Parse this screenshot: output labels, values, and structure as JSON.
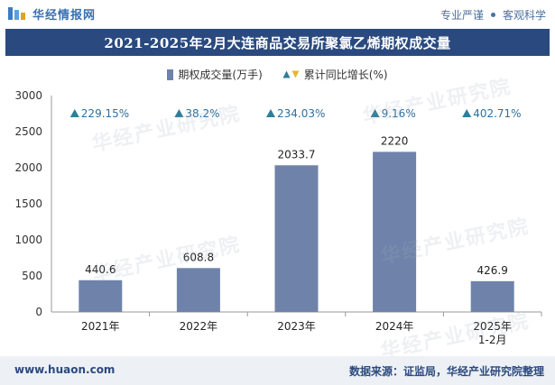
{
  "header": {
    "site_name": "华经情报网",
    "slogan_left": "专业严谨",
    "slogan_right": "客观科学"
  },
  "footer": {
    "url": "www.huaon.com",
    "source": "数据来源：证监局，华经产业研究院整理"
  },
  "watermark_text": "华经产业研究院",
  "colors": {
    "bar": "#6f83aa",
    "title_bg": "#2a4a7f",
    "growth_text": "#2f6fa0",
    "up_arrow": "#2f7d9a",
    "down_arrow": "#e8b42a"
  },
  "chart_data": {
    "type": "bar",
    "title": "2021-2025年2月大连商品交易所聚氯乙烯期权成交量",
    "categories": [
      "2021年",
      "2022年",
      "2023年",
      "2024年",
      "2025年\n1-2月"
    ],
    "series": [
      {
        "name": "期权成交量(万手)",
        "values": [
          440.6,
          608.8,
          2033.7,
          2220,
          426.9
        ],
        "value_labels": [
          "440.6",
          "608.8",
          "2033.7",
          "2220",
          "426.9"
        ]
      },
      {
        "name": "累计同比增长(%)",
        "values": [
          229.15,
          38.2,
          234.03,
          9.16,
          402.71
        ],
        "value_labels": [
          "229.15%",
          "38.2%",
          "234.03%",
          "9.16%",
          "402.71%"
        ]
      }
    ],
    "ylim": [
      0,
      3000
    ],
    "yticks": [
      0,
      500,
      1000,
      1500,
      2000,
      2500,
      3000
    ],
    "legend_position": "top",
    "grid": false
  }
}
